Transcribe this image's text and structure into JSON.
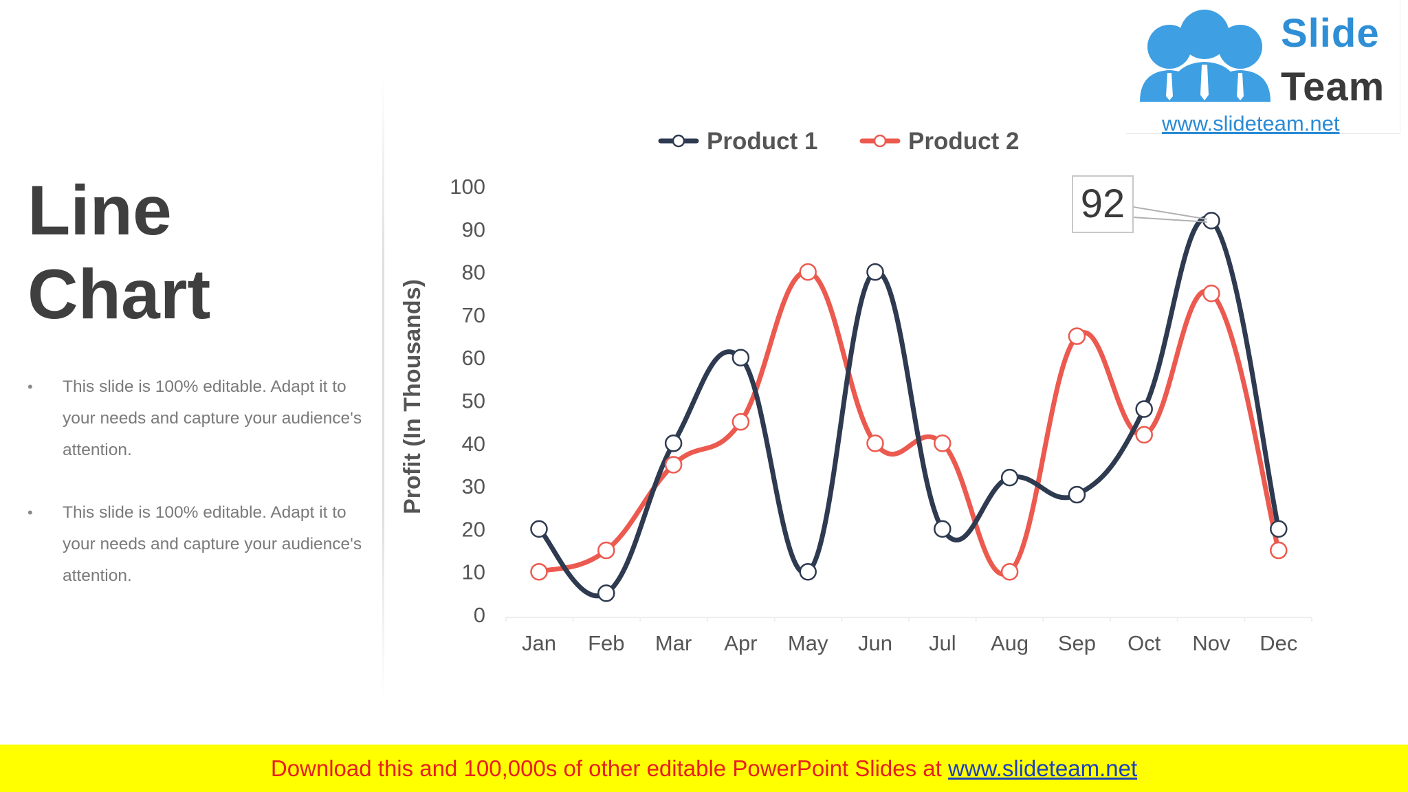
{
  "slide": {
    "title_line1": "Line",
    "title_line2": "Chart",
    "bullets": [
      {
        "line1": "This slide is 100% editable. Adapt it to",
        "line2": "your needs and capture your audience's",
        "line3": "attention."
      },
      {
        "line1": "This slide is 100% editable. Adapt it to",
        "line2": "your needs and capture your audience's",
        "line3": "attention."
      }
    ]
  },
  "logo": {
    "word1": "Slide",
    "word2": "Team",
    "url": "www.slideteam.net",
    "blue": "#2e8fd6"
  },
  "banner": {
    "text": "Download this and 100,000s of other editable PowerPoint Slides at ",
    "link": "www.slideteam.net"
  },
  "chart_data": {
    "type": "line",
    "smooth": true,
    "categories": [
      "Jan",
      "Feb",
      "Mar",
      "Apr",
      "May",
      "Jun",
      "Jul",
      "Aug",
      "Sep",
      "Oct",
      "Nov",
      "Dec"
    ],
    "series": [
      {
        "name": "Product 1",
        "color": "#2e3a50",
        "values": [
          20,
          5,
          40,
          60,
          10,
          80,
          20,
          32,
          28,
          48,
          92,
          20
        ]
      },
      {
        "name": "Product 2",
        "color": "#ec5a4f",
        "values": [
          10,
          15,
          35,
          45,
          80,
          40,
          40,
          10,
          65,
          42,
          75,
          15
        ]
      }
    ],
    "ylabel": "Profit (In Thousands)",
    "xlabel": "",
    "ylim": [
      0,
      100
    ],
    "yticks": [
      "0",
      "10",
      "20",
      "30",
      "40",
      "50",
      "60",
      "70",
      "80",
      "90",
      "100"
    ],
    "grid": false,
    "legend": "top-center",
    "annotations": [
      {
        "text": "92",
        "series": 0,
        "category": "Nov"
      }
    ]
  }
}
